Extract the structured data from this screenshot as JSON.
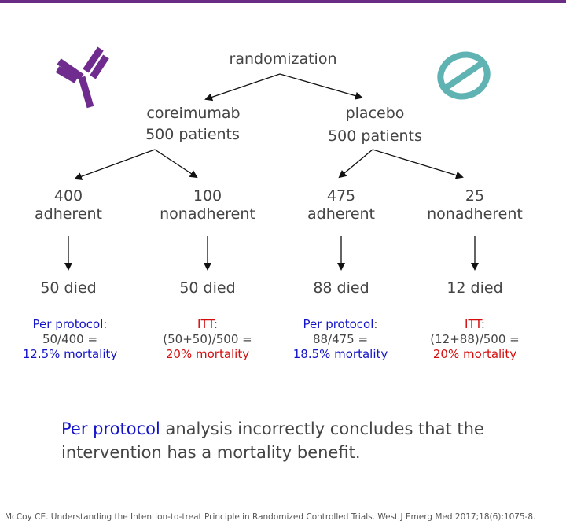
{
  "root": {
    "label": "randomization"
  },
  "arms": [
    {
      "name": "coreimumab",
      "patients": "500 patients",
      "groups": [
        {
          "count": "400",
          "type": "adherent",
          "died": "50 died",
          "analysis_label": "Per protocol",
          "analysis_sep": ":",
          "formula": "50/400 =",
          "result": "12.5% mortality",
          "color": "#1414c8"
        },
        {
          "count": "100",
          "type": "nonadherent",
          "died": "50 died",
          "analysis_label": "ITT",
          "analysis_sep": ":",
          "formula": "(50+50)/500 =",
          "result": "20% mortality",
          "color": "#d40d0d"
        }
      ]
    },
    {
      "name": "placebo",
      "patients": "500 patients",
      "groups": [
        {
          "count": "475",
          "type": "adherent",
          "died": "88 died",
          "analysis_label": "Per protocol",
          "analysis_sep": ":",
          "formula": "88/475 =",
          "result": "18.5% mortality",
          "color": "#1414c8"
        },
        {
          "count": "25",
          "type": "nonadherent",
          "died": "12 died",
          "analysis_label": "ITT",
          "analysis_sep": ":",
          "formula": "(12+88)/500 =",
          "result": "20% mortality",
          "color": "#d40d0d"
        }
      ]
    }
  ],
  "conclusion": {
    "highlight": "Per protocol",
    "rest": " analysis incorrectly concludes that the intervention has a mortality benefit."
  },
  "citation": "McCoy CE. Understanding the Intention-to-treat Principle in Randomized Controlled Trials. West J Emerg Med 2017;18(6):1075-8.",
  "icons": {
    "left": "antibody-icon",
    "right": "pill-icon"
  },
  "colors": {
    "accent": "#6b2d84",
    "antibody": "#6f2c8e",
    "pill": "#5fb3b3",
    "per_protocol": "#1414c8",
    "itt": "#d40d0d"
  }
}
